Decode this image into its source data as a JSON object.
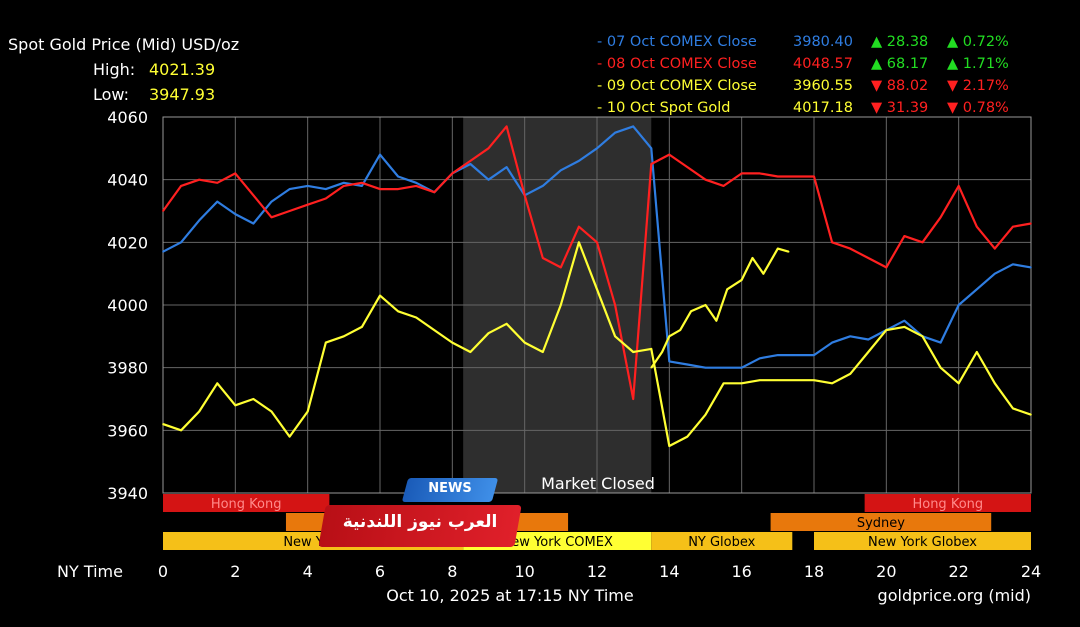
{
  "header": {
    "title": "Spot Gold Price (Mid) USD/oz",
    "high_label": "High:",
    "high_value": "4021.39",
    "low_label": "Low:",
    "low_value": "3947.93"
  },
  "legend": [
    {
      "label": "- 07 Oct COMEX Close",
      "close": "3980.40",
      "change": "▲ 28.38",
      "pct": "▲ 0.72%",
      "color": "#2f7de1",
      "dir": "up"
    },
    {
      "label": "- 08 Oct COMEX Close",
      "close": "4048.57",
      "change": "▲ 68.17",
      "pct": "▲ 1.71%",
      "color": "#ff2020",
      "dir": "up"
    },
    {
      "label": "- 09 Oct COMEX Close",
      "close": "3960.55",
      "change": "▼ 88.02",
      "pct": "▼ 2.17%",
      "color": "#ffff33",
      "dir": "down"
    },
    {
      "label": "- 10 Oct Spot Gold",
      "close": "4017.18",
      "change": "▼ 31.39",
      "pct": "▼ 0.78%",
      "color": "#ffff33",
      "dir": "down"
    }
  ],
  "colors": {
    "up": "#22dd22",
    "down": "#ff2020",
    "blue": "#2f7de1",
    "red": "#ff2020",
    "yellow": "#ffff33",
    "grid": "#666666",
    "closed_shade": "#2e2e2e"
  },
  "market_closed_label": "Market Closed",
  "footer": {
    "x_axis_label": "NY Time",
    "timestamp": "Oct 10, 2025 at 17:15 NY Time",
    "source": "goldprice.org (mid)"
  },
  "overlay": {
    "tag_text": "NEWS",
    "banner_text": "العرب نيوز اللندنية"
  },
  "chart_data": {
    "type": "line",
    "xlim": [
      0,
      24
    ],
    "ylim": [
      3940,
      4060
    ],
    "x_ticks": [
      0,
      2,
      4,
      6,
      8,
      10,
      12,
      14,
      16,
      18,
      20,
      22,
      24
    ],
    "y_ticks": [
      3940,
      3960,
      3980,
      4000,
      4020,
      4040,
      4060
    ],
    "market_closed": [
      8.3,
      13.5
    ],
    "sessions": [
      {
        "name": "Hong Kong",
        "start": 0,
        "end": 4.6,
        "row": 0,
        "color": "#d41414",
        "text": "#ff8a8a"
      },
      {
        "name": "Hong Kong",
        "start": 19.4,
        "end": 24,
        "row": 0,
        "color": "#d41414",
        "text": "#ff8a8a"
      },
      {
        "name": "",
        "start": 3.4,
        "end": 11.2,
        "row": 1,
        "color": "#e8780c",
        "text": "#000000"
      },
      {
        "name": "Sydney",
        "start": 16.8,
        "end": 22.9,
        "row": 1,
        "color": "#e8780c",
        "text": "#000000"
      },
      {
        "name": "New York",
        "start": 0,
        "end": 8.3,
        "row": 2,
        "color": "#f5c018",
        "text": "#000000"
      },
      {
        "name": "New York COMEX",
        "start": 8.3,
        "end": 13.5,
        "row": 2,
        "color": "#ffff33",
        "text": "#000000"
      },
      {
        "name": "NY Globex",
        "start": 13.5,
        "end": 17.4,
        "row": 2,
        "color": "#f5c018",
        "text": "#000000"
      },
      {
        "name": "New York Globex",
        "start": 18,
        "end": 24,
        "row": 2,
        "color": "#f5c018",
        "text": "#000000"
      }
    ],
    "series": [
      {
        "color": "#2f7de1",
        "x": [
          0,
          0.5,
          1,
          1.5,
          2,
          2.5,
          3,
          3.5,
          4,
          4.5,
          5,
          5.5,
          6,
          6.5,
          7,
          7.5,
          8,
          8.5,
          9,
          9.5,
          10,
          10.5,
          11,
          11.5,
          12,
          12.5,
          13,
          13.5,
          14,
          14.5,
          15,
          15.5,
          16,
          16.5,
          17,
          17.5,
          18,
          18.5,
          19,
          19.5,
          20,
          20.5,
          21,
          21.5,
          22,
          22.5,
          23,
          23.5,
          24
        ],
        "values": [
          4017,
          4020,
          4027,
          4033,
          4029,
          4026,
          4033,
          4037,
          4038,
          4037,
          4039,
          4038,
          4048,
          4041,
          4039,
          4036,
          4042,
          4045,
          4040,
          4044,
          4035,
          4038,
          4043,
          4046,
          4050,
          4055,
          4057,
          4050,
          3982,
          3981,
          3980,
          3980,
          3980,
          3983,
          3984,
          3984,
          3984,
          3988,
          3990,
          3989,
          3992,
          3995,
          3990,
          3988,
          4000,
          4005,
          4010,
          4013,
          4012
        ]
      },
      {
        "color": "#ff2020",
        "x": [
          0,
          0.5,
          1,
          1.5,
          2,
          2.5,
          3,
          3.5,
          4,
          4.5,
          5,
          5.5,
          6,
          6.5,
          7,
          7.5,
          8,
          8.5,
          9,
          9.5,
          10,
          10.5,
          11,
          11.5,
          12,
          12.5,
          13,
          13.5,
          14,
          14.5,
          15,
          15.5,
          16,
          16.5,
          17,
          17.5,
          18,
          18.5,
          19,
          19.5,
          20,
          20.5,
          21,
          21.5,
          22,
          22.5,
          23,
          23.5,
          24
        ],
        "values": [
          4030,
          4038,
          4040,
          4039,
          4042,
          4035,
          4028,
          4030,
          4032,
          4034,
          4038,
          4039,
          4037,
          4037,
          4038,
          4036,
          4042,
          4046,
          4050,
          4057,
          4035,
          4015,
          4012,
          4025,
          4020,
          4000,
          3970,
          4045,
          4048,
          4044,
          4040,
          4038,
          4042,
          4042,
          4041,
          4041,
          4041,
          4020,
          4018,
          4015,
          4012,
          4022,
          4020,
          4028,
          4038,
          4025,
          4018,
          4025,
          4026
        ]
      },
      {
        "color": "#ffff33",
        "x": [
          0,
          0.5,
          1,
          1.5,
          2,
          2.5,
          3,
          3.5,
          4,
          4.5,
          5,
          5.5,
          6,
          6.5,
          7,
          7.5,
          8,
          8.5,
          9,
          9.5,
          10,
          10.5,
          11,
          11.5,
          12,
          12.5,
          13,
          13.5,
          14,
          14.5,
          15,
          15.5,
          16,
          16.5,
          17,
          17.5,
          18,
          18.5,
          19,
          19.5,
          20,
          20.5,
          21,
          21.5,
          22,
          22.5,
          23,
          23.5,
          24
        ],
        "values": [
          3962,
          3960,
          3966,
          3975,
          3968,
          3970,
          3966,
          3958,
          3966,
          3988,
          3990,
          3993,
          4003,
          3998,
          3996,
          3992,
          3988,
          3985,
          3991,
          3994,
          3988,
          3985,
          4000,
          4020,
          4005,
          3990,
          3985,
          3986,
          3955,
          3958,
          3965,
          3975,
          3975,
          3976,
          3976,
          3976,
          3976,
          3975,
          3978,
          3985,
          3992,
          3993,
          3990,
          3980,
          3975,
          3985,
          3975,
          3967,
          3965
        ]
      },
      {
        "color": "#ffff33",
        "x": [
          13.5,
          13.8,
          14,
          14.3,
          14.6,
          15,
          15.3,
          15.6,
          16,
          16.3,
          16.6,
          17,
          17.3
        ],
        "values": [
          3980,
          3985,
          3990,
          3992,
          3998,
          4000,
          3995,
          4005,
          4008,
          4015,
          4010,
          4018,
          4017
        ]
      }
    ]
  }
}
